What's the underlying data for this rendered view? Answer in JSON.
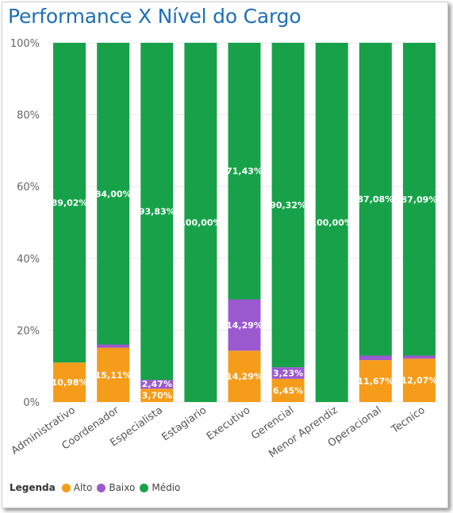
{
  "title": "Performance X Nível do Cargo",
  "legend": {
    "title": "Legenda",
    "items": [
      {
        "label": "Alto",
        "color": "#f59c1a"
      },
      {
        "label": "Baixo",
        "color": "#9b59d0"
      },
      {
        "label": "Médio",
        "color": "#17a24a"
      }
    ]
  },
  "chart_data": {
    "type": "bar",
    "stacked": true,
    "categories": [
      "Administrativo",
      "Coordenador",
      "Especialista",
      "Estagiario",
      "Executivo",
      "Gerencial",
      "Menor Aprendiz",
      "Operacional",
      "Tecnico"
    ],
    "series": [
      {
        "name": "Alto",
        "color": "#f59c1a",
        "values": [
          10.98,
          15.11,
          3.7,
          0,
          14.29,
          6.45,
          0,
          11.67,
          12.07
        ],
        "labels": [
          "10,98%",
          "15,11%",
          "3,70%",
          "",
          "14,29%",
          "6,45%",
          "",
          "11,67%",
          "12,07%"
        ]
      },
      {
        "name": "Baixo",
        "color": "#9b59d0",
        "values": [
          0,
          0.89,
          2.47,
          0,
          14.29,
          3.23,
          0,
          1.25,
          0.84
        ],
        "labels": [
          "",
          "",
          "2,47%",
          "",
          "14,29%",
          "3,23%",
          "",
          "",
          ""
        ]
      },
      {
        "name": "Médio",
        "color": "#17a24a",
        "values": [
          89.02,
          84.0,
          93.83,
          100.0,
          71.43,
          90.32,
          100.0,
          87.08,
          87.09
        ],
        "labels": [
          "89,02%",
          "84,00%",
          "93,83%",
          "100,00%",
          "71,43%",
          "90,32%",
          "100,00%",
          "87,08%",
          "87,09%"
        ]
      }
    ],
    "yticks": [
      "0%",
      "20%",
      "40%",
      "60%",
      "80%",
      "100%"
    ],
    "ylim": [
      0,
      100
    ],
    "grid": true,
    "legend_position": "bottom-left"
  }
}
